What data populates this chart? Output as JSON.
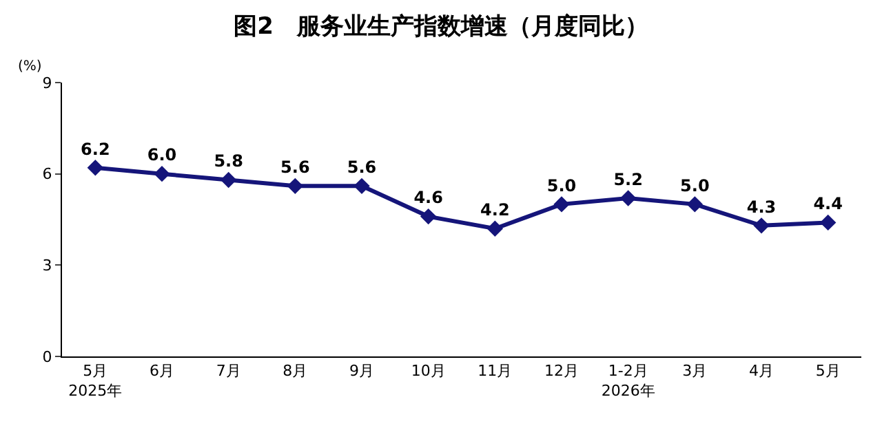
{
  "chart_data": {
    "type": "line",
    "title": "图2　服务业生产指数增速（月度同比）",
    "ylabel": "(%)",
    "categories": [
      "5月\n2025年",
      "6月",
      "7月",
      "8月",
      "9月",
      "10月",
      "11月",
      "12月",
      "1-2月\n2026年",
      "3月",
      "4月",
      "5月"
    ],
    "series": [
      {
        "color": "#15157a",
        "values": [
          6.2,
          6.0,
          5.8,
          5.6,
          5.6,
          4.6,
          4.2,
          5.0,
          5.2,
          5.0,
          4.3,
          4.4
        ],
        "value_labels": [
          "6.2",
          "6.0",
          "5.8",
          "5.6",
          "5.6",
          "4.6",
          "4.2",
          "5.0",
          "5.2",
          "5.0",
          "4.3",
          "4.4"
        ]
      }
    ],
    "ylim": [
      0,
      9
    ],
    "yticks": [
      0,
      3,
      6,
      9
    ],
    "marker": "diamond",
    "line_style": "solid"
  }
}
